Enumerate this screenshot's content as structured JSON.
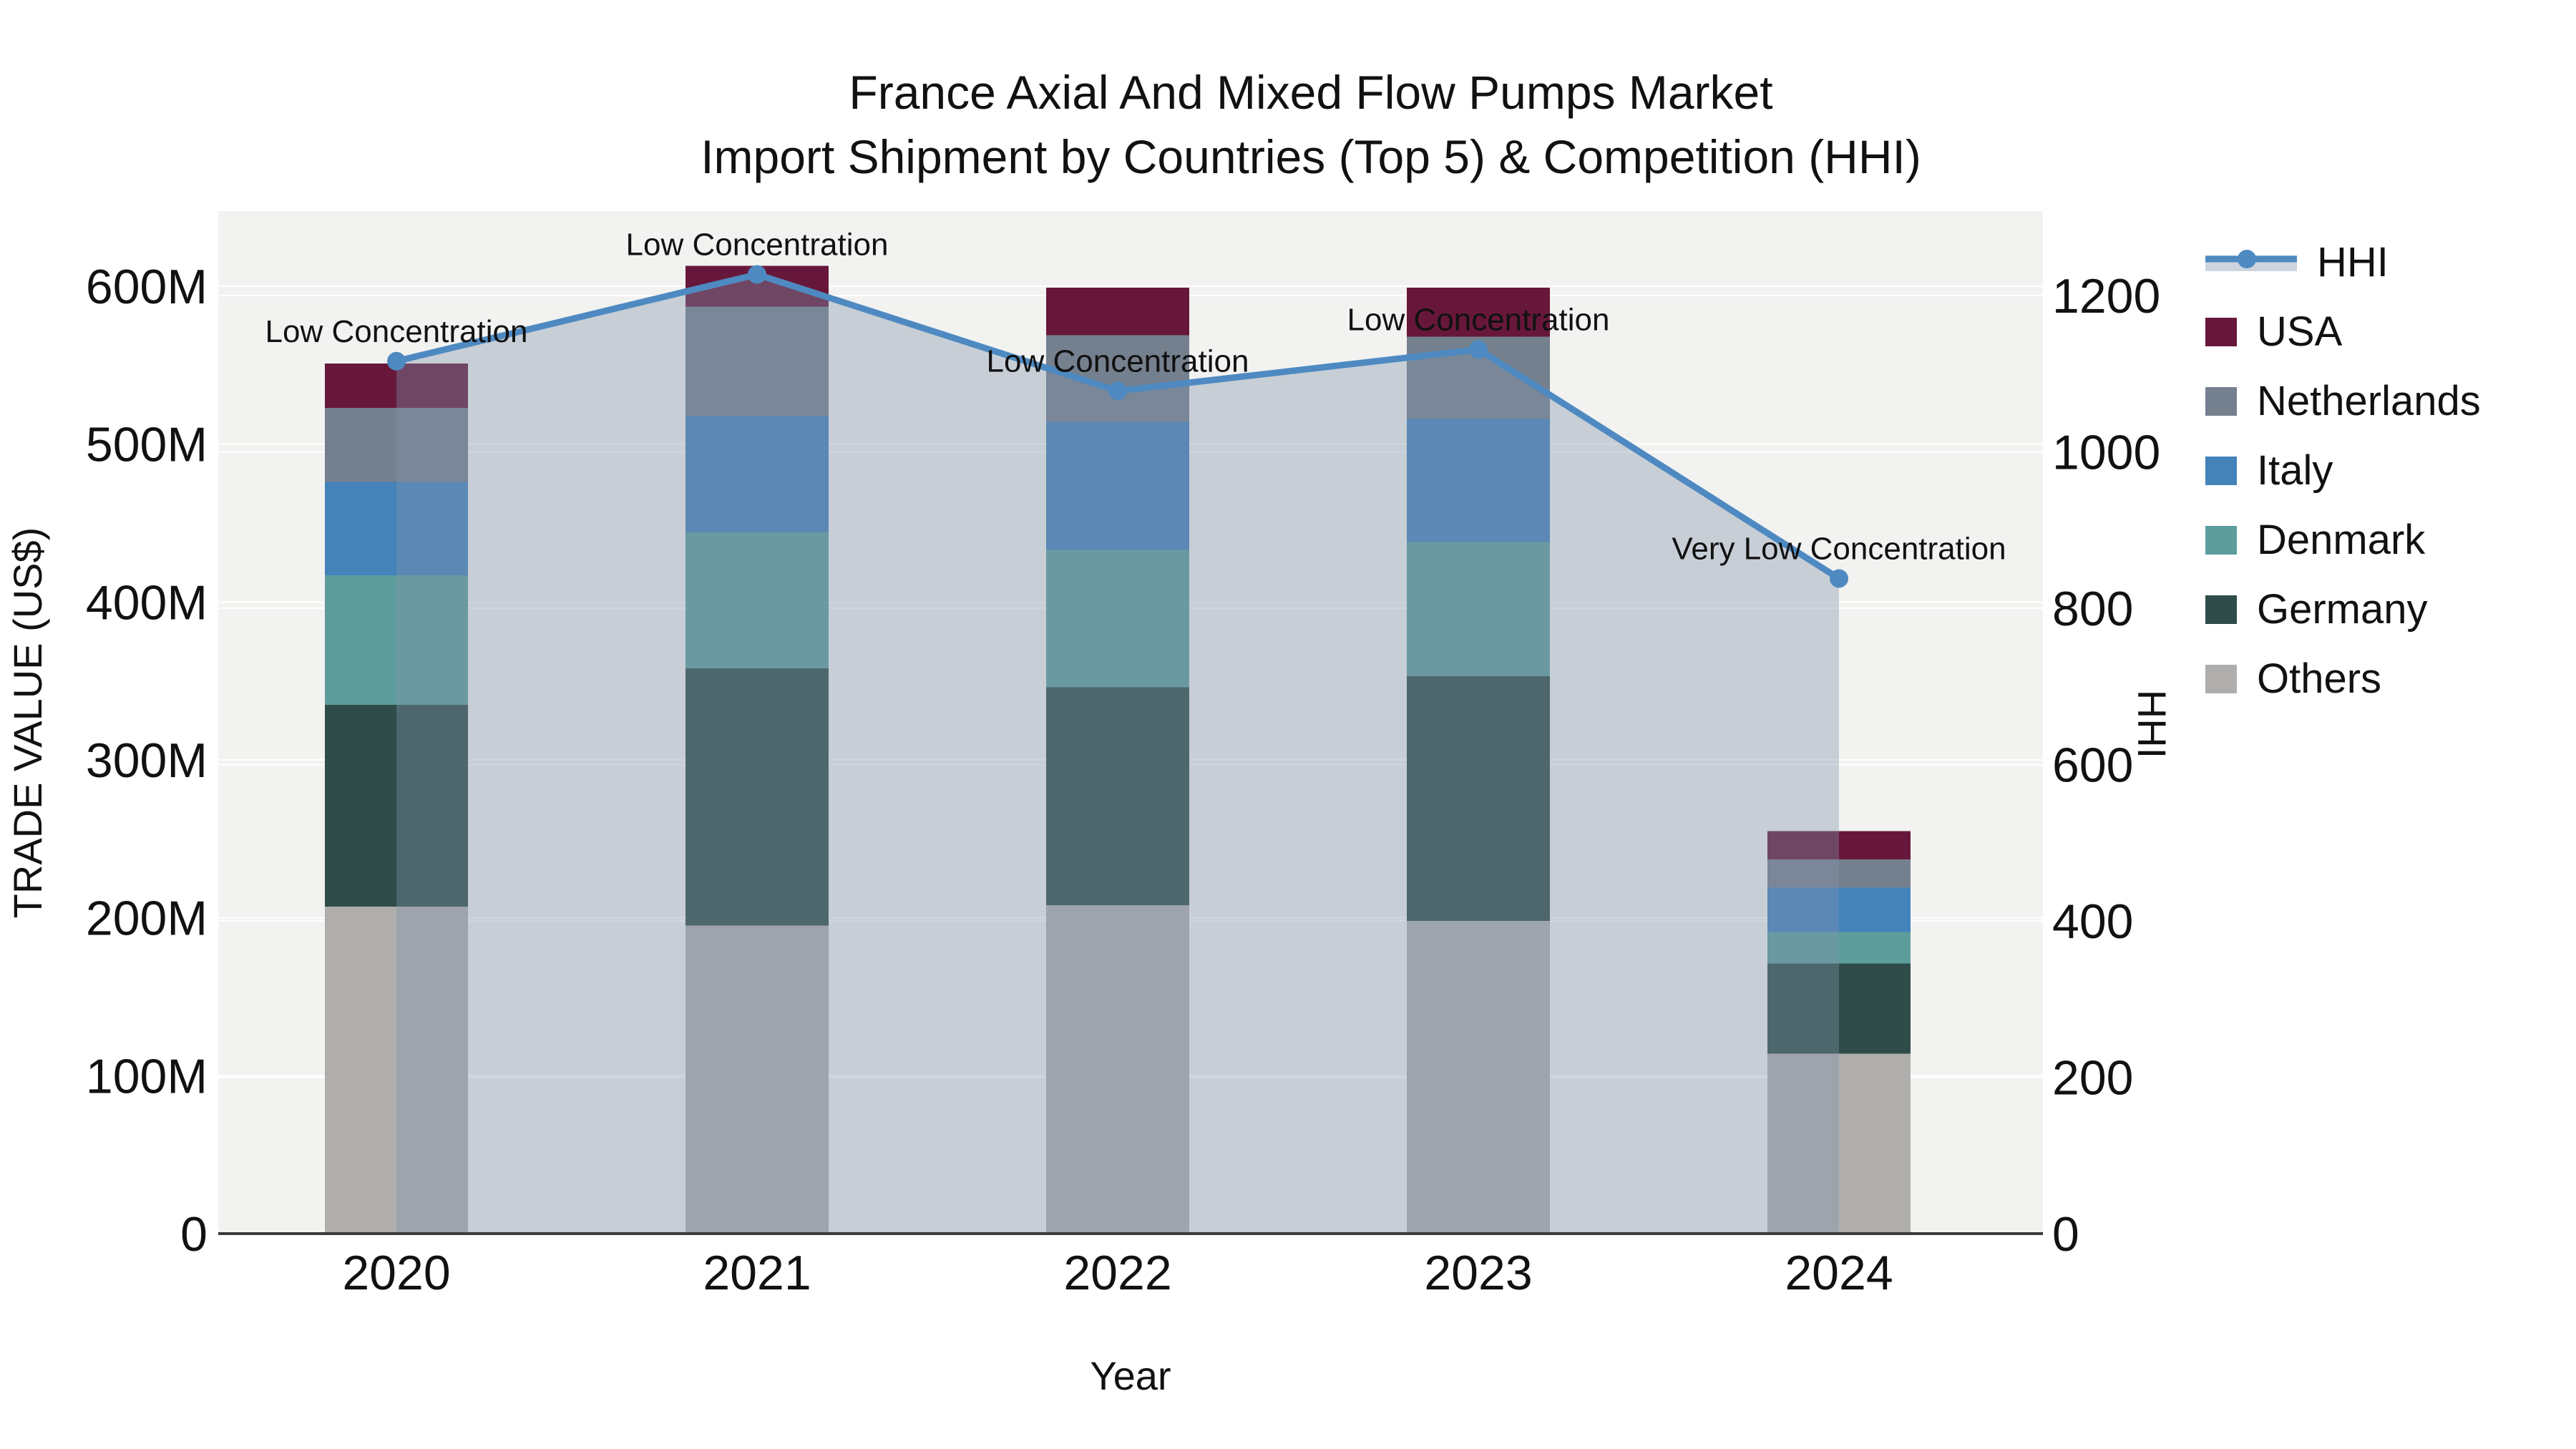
{
  "title": {
    "line1": "France Axial And Mixed Flow Pumps Market",
    "line2": "Import Shipment by Countries (Top 5) & Competition (HHI)"
  },
  "axes": {
    "left": {
      "title": "TRADE VALUE (US$)",
      "ticks": [
        "0",
        "100M",
        "200M",
        "300M",
        "400M",
        "500M",
        "600M"
      ]
    },
    "right": {
      "title": "HHI",
      "ticks": [
        "0",
        "200",
        "400",
        "600",
        "800",
        "1000",
        "1200"
      ]
    },
    "x": {
      "title": "Year",
      "ticks": [
        "2020",
        "2021",
        "2022",
        "2023",
        "2024"
      ]
    }
  },
  "legend": {
    "items": [
      {
        "label": "HHI",
        "type": "line",
        "color": "#4E8AC1"
      },
      {
        "label": "USA",
        "type": "swatch",
        "color": "#67183A"
      },
      {
        "label": "Netherlands",
        "type": "swatch",
        "color": "#75808F"
      },
      {
        "label": "Italy",
        "type": "swatch",
        "color": "#4482BA"
      },
      {
        "label": "Denmark",
        "type": "swatch",
        "color": "#5C9D9C"
      },
      {
        "label": "Germany",
        "type": "swatch",
        "color": "#2F4C48"
      },
      {
        "label": "Others",
        "type": "swatch",
        "color": "#AFAEAD"
      }
    ]
  },
  "chart_data": {
    "type": "bar",
    "subtype": "stacked-bars-with-hhi-line",
    "title": "France Axial And Mixed Flow Pumps Market Import Shipment by Countries (Top 5) & Competition (HHI)",
    "categories": [
      "2020",
      "2021",
      "2022",
      "2023",
      "2024"
    ],
    "xlabel": "Year",
    "ylabel_left": "TRADE VALUE (US$)",
    "ylabel_right": "HHI",
    "bar_value_unit": "US$ millions",
    "series": [
      {
        "name": "USA",
        "color": "#67183A",
        "values": [
          28,
          26,
          30,
          31,
          18
        ]
      },
      {
        "name": "Netherlands",
        "color": "#75808F",
        "values": [
          47,
          69,
          55,
          52,
          18
        ]
      },
      {
        "name": "Italy",
        "color": "#4482BA",
        "values": [
          59,
          74,
          81,
          78,
          28
        ]
      },
      {
        "name": "Denmark",
        "color": "#5C9D9C",
        "values": [
          82,
          86,
          87,
          85,
          20
        ]
      },
      {
        "name": "Germany",
        "color": "#2F4C48",
        "values": [
          128,
          163,
          138,
          155,
          57
        ]
      },
      {
        "name": "Others",
        "color": "#AFAEAD",
        "values": [
          207,
          195,
          208,
          198,
          114
        ]
      }
    ],
    "stack_totals_millions": [
      551,
      613,
      599,
      599,
      255
    ],
    "line_series": {
      "name": "HHI",
      "axis": "right",
      "color": "#4E8AC1",
      "area_fill": "rgba(130,148,170,0.38)",
      "values": [
        1116,
        1227,
        1078,
        1131,
        838
      ]
    },
    "annotations": [
      {
        "category": "2020",
        "text": "Low Concentration"
      },
      {
        "category": "2021",
        "text": "Low Concentration"
      },
      {
        "category": "2022",
        "text": "Low Concentration"
      },
      {
        "category": "2023",
        "text": "Low Concentration"
      },
      {
        "category": "2024",
        "text": "Very Low Concentration"
      }
    ],
    "ylim_left_millions": [
      0,
      650
    ],
    "ylim_right": [
      0,
      1310
    ],
    "grid": true,
    "legend_position": "right",
    "plot_background": "#F2F2F1",
    "gridline_color": "#FFFFFF",
    "axis_line_color": "#3B3B3B"
  }
}
